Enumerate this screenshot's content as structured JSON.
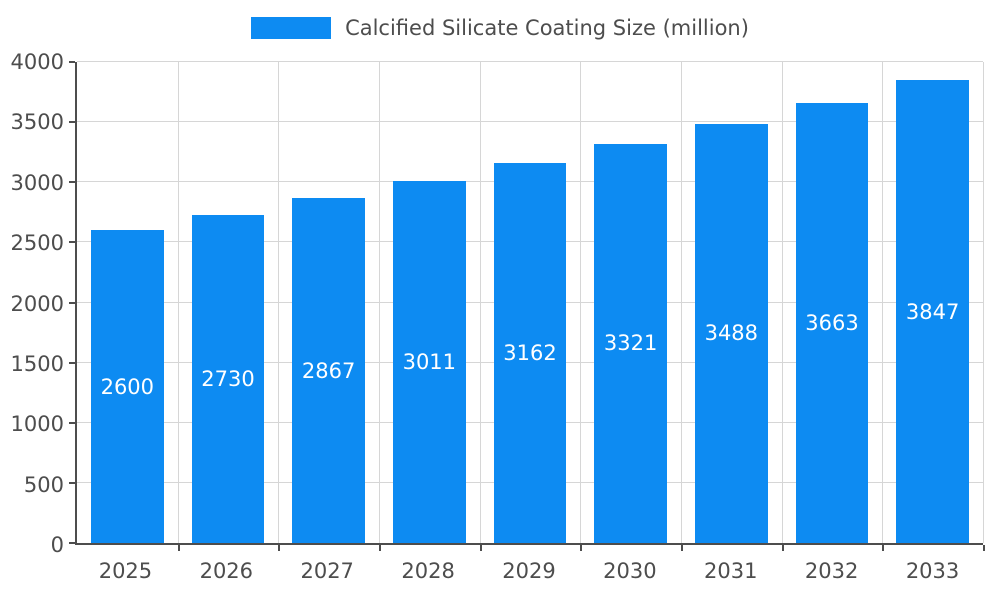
{
  "chart_data": {
    "type": "bar",
    "title": "",
    "series_name": "Calcified Silicate Coating Size (million)",
    "categories": [
      "2025",
      "2026",
      "2027",
      "2028",
      "2029",
      "2030",
      "2031",
      "2032",
      "2033"
    ],
    "values": [
      2600,
      2730,
      2867,
      3011,
      3162,
      3321,
      3488,
      3663,
      3847
    ],
    "ylim": [
      0,
      4000
    ],
    "yticks": [
      "0",
      "500",
      "1000",
      "1500",
      "2000",
      "2500",
      "3000",
      "3500",
      "4000"
    ],
    "xlabel": "",
    "ylabel": "",
    "grid": true,
    "legend_position": "top",
    "value_labels": "inside-center",
    "bar_color": "#0d8bf2",
    "value_label_color": "#ffffff",
    "axis_text_color": "#4d4d4d",
    "gridline_color": "#d6d6d6",
    "background_color": "#ffffff"
  }
}
